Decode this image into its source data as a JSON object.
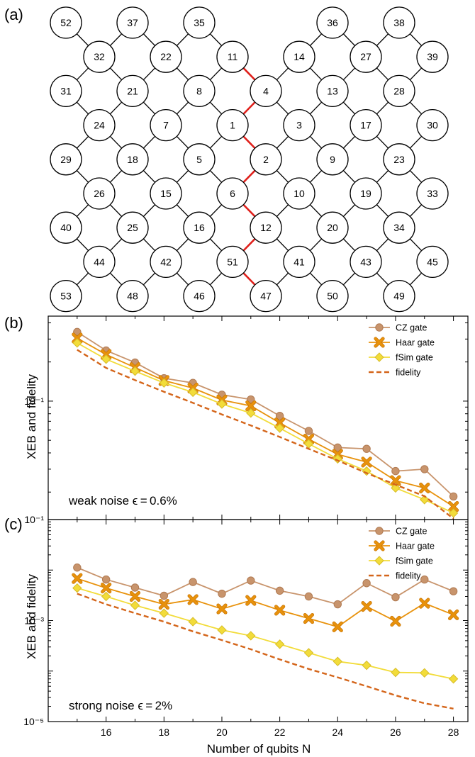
{
  "panel_labels": {
    "a": "(a)",
    "b": "(b)",
    "c": "(c)"
  },
  "lattice": {
    "nodes": [
      {
        "id": "52",
        "col": 0,
        "row": 0
      },
      {
        "id": "37",
        "col": 2,
        "row": 0
      },
      {
        "id": "35",
        "col": 4,
        "row": 0
      },
      {
        "id": "36",
        "col": 8,
        "row": 0
      },
      {
        "id": "38",
        "col": 10,
        "row": 0
      },
      {
        "id": "32",
        "col": 1,
        "row": 1
      },
      {
        "id": "22",
        "col": 3,
        "row": 1
      },
      {
        "id": "11",
        "col": 5,
        "row": 1
      },
      {
        "id": "14",
        "col": 7,
        "row": 1
      },
      {
        "id": "27",
        "col": 9,
        "row": 1
      },
      {
        "id": "39",
        "col": 11,
        "row": 1
      },
      {
        "id": "31",
        "col": 0,
        "row": 2
      },
      {
        "id": "21",
        "col": 2,
        "row": 2
      },
      {
        "id": "8",
        "col": 4,
        "row": 2
      },
      {
        "id": "4",
        "col": 6,
        "row": 2
      },
      {
        "id": "13",
        "col": 8,
        "row": 2
      },
      {
        "id": "28",
        "col": 10,
        "row": 2
      },
      {
        "id": "24",
        "col": 1,
        "row": 3
      },
      {
        "id": "7",
        "col": 3,
        "row": 3
      },
      {
        "id": "1",
        "col": 5,
        "row": 3
      },
      {
        "id": "3",
        "col": 7,
        "row": 3
      },
      {
        "id": "17",
        "col": 9,
        "row": 3
      },
      {
        "id": "30",
        "col": 11,
        "row": 3
      },
      {
        "id": "29",
        "col": 0,
        "row": 4
      },
      {
        "id": "18",
        "col": 2,
        "row": 4
      },
      {
        "id": "5",
        "col": 4,
        "row": 4
      },
      {
        "id": "2",
        "col": 6,
        "row": 4
      },
      {
        "id": "9",
        "col": 8,
        "row": 4
      },
      {
        "id": "23",
        "col": 10,
        "row": 4
      },
      {
        "id": "26",
        "col": 1,
        "row": 5
      },
      {
        "id": "15",
        "col": 3,
        "row": 5
      },
      {
        "id": "6",
        "col": 5,
        "row": 5
      },
      {
        "id": "10",
        "col": 7,
        "row": 5
      },
      {
        "id": "19",
        "col": 9,
        "row": 5
      },
      {
        "id": "33",
        "col": 11,
        "row": 5
      },
      {
        "id": "40",
        "col": 0,
        "row": 6
      },
      {
        "id": "25",
        "col": 2,
        "row": 6
      },
      {
        "id": "16",
        "col": 4,
        "row": 6
      },
      {
        "id": "12",
        "col": 6,
        "row": 6
      },
      {
        "id": "20",
        "col": 8,
        "row": 6
      },
      {
        "id": "34",
        "col": 10,
        "row": 6
      },
      {
        "id": "44",
        "col": 1,
        "row": 7
      },
      {
        "id": "42",
        "col": 3,
        "row": 7
      },
      {
        "id": "51",
        "col": 5,
        "row": 7
      },
      {
        "id": "41",
        "col": 7,
        "row": 7
      },
      {
        "id": "43",
        "col": 9,
        "row": 7
      },
      {
        "id": "45",
        "col": 11,
        "row": 7
      },
      {
        "id": "53",
        "col": 0,
        "row": 8
      },
      {
        "id": "48",
        "col": 2,
        "row": 8
      },
      {
        "id": "46",
        "col": 4,
        "row": 8
      },
      {
        "id": "47",
        "col": 6,
        "row": 8
      },
      {
        "id": "50",
        "col": 8,
        "row": 8
      },
      {
        "id": "49",
        "col": 10,
        "row": 8
      }
    ],
    "edges": [
      [
        "52",
        "32"
      ],
      [
        "37",
        "32"
      ],
      [
        "37",
        "22"
      ],
      [
        "35",
        "22"
      ],
      [
        "35",
        "11"
      ],
      [
        "36",
        "14"
      ],
      [
        "36",
        "27"
      ],
      [
        "38",
        "27"
      ],
      [
        "38",
        "39"
      ],
      [
        "32",
        "31"
      ],
      [
        "32",
        "21"
      ],
      [
        "22",
        "21"
      ],
      [
        "22",
        "8"
      ],
      [
        "11",
        "8"
      ],
      [
        "11",
        "4"
      ],
      [
        "14",
        "4"
      ],
      [
        "14",
        "13"
      ],
      [
        "27",
        "13"
      ],
      [
        "27",
        "28"
      ],
      [
        "39",
        "28"
      ],
      [
        "31",
        "24"
      ],
      [
        "21",
        "24"
      ],
      [
        "21",
        "7"
      ],
      [
        "8",
        "7"
      ],
      [
        "8",
        "1"
      ],
      [
        "4",
        "1"
      ],
      [
        "4",
        "3"
      ],
      [
        "13",
        "3"
      ],
      [
        "13",
        "17"
      ],
      [
        "28",
        "17"
      ],
      [
        "28",
        "30"
      ],
      [
        "24",
        "29"
      ],
      [
        "24",
        "18"
      ],
      [
        "7",
        "18"
      ],
      [
        "7",
        "5"
      ],
      [
        "1",
        "5"
      ],
      [
        "1",
        "2"
      ],
      [
        "3",
        "2"
      ],
      [
        "3",
        "9"
      ],
      [
        "17",
        "9"
      ],
      [
        "17",
        "23"
      ],
      [
        "30",
        "23"
      ],
      [
        "29",
        "26"
      ],
      [
        "18",
        "26"
      ],
      [
        "18",
        "15"
      ],
      [
        "5",
        "15"
      ],
      [
        "5",
        "6"
      ],
      [
        "2",
        "6"
      ],
      [
        "2",
        "10"
      ],
      [
        "9",
        "10"
      ],
      [
        "9",
        "19"
      ],
      [
        "23",
        "19"
      ],
      [
        "23",
        "33"
      ],
      [
        "26",
        "40"
      ],
      [
        "26",
        "25"
      ],
      [
        "15",
        "25"
      ],
      [
        "15",
        "16"
      ],
      [
        "6",
        "16"
      ],
      [
        "6",
        "12"
      ],
      [
        "10",
        "12"
      ],
      [
        "10",
        "20"
      ],
      [
        "19",
        "20"
      ],
      [
        "19",
        "34"
      ],
      [
        "33",
        "34"
      ],
      [
        "40",
        "44"
      ],
      [
        "25",
        "44"
      ],
      [
        "25",
        "42"
      ],
      [
        "16",
        "42"
      ],
      [
        "16",
        "51"
      ],
      [
        "12",
        "51"
      ],
      [
        "12",
        "41"
      ],
      [
        "20",
        "41"
      ],
      [
        "20",
        "43"
      ],
      [
        "34",
        "43"
      ],
      [
        "34",
        "45"
      ],
      [
        "44",
        "53"
      ],
      [
        "44",
        "48"
      ],
      [
        "42",
        "48"
      ],
      [
        "42",
        "46"
      ],
      [
        "51",
        "46"
      ],
      [
        "51",
        "47"
      ],
      [
        "41",
        "47"
      ],
      [
        "41",
        "50"
      ],
      [
        "43",
        "50"
      ],
      [
        "43",
        "49"
      ],
      [
        "45",
        "49"
      ]
    ],
    "highlight_edges": [
      [
        "11",
        "4"
      ],
      [
        "4",
        "1"
      ],
      [
        "1",
        "2"
      ],
      [
        "2",
        "6"
      ],
      [
        "6",
        "12"
      ],
      [
        "12",
        "51"
      ],
      [
        "51",
        "47"
      ]
    ],
    "colors": {
      "edge": "#000000",
      "highlight": "#e0201b"
    }
  },
  "chart_data": [
    {
      "type": "line",
      "panel": "b",
      "annotation": "weak noise ϵ = 0.6%",
      "ylabel": "XEB and fidelity",
      "yscale": "log",
      "ylim": [
        0.0123,
        0.45
      ],
      "ytick_labels": [
        {
          "value": 0.1,
          "label": "10⁻¹"
        }
      ],
      "x": [
        15,
        16,
        17,
        18,
        19,
        20,
        21,
        22,
        23,
        24,
        25,
        26,
        27,
        28
      ],
      "series": [
        {
          "name": "CZ gate",
          "marker": "circle",
          "color": "#c8946c",
          "values": [
            0.34,
            0.245,
            0.198,
            0.15,
            0.138,
            0.112,
            0.103,
            0.077,
            0.059,
            0.044,
            0.043,
            0.029,
            0.03,
            0.0185
          ]
        },
        {
          "name": "Haar gate",
          "marker": "x",
          "color": "#e8920c",
          "values": [
            0.305,
            0.228,
            0.181,
            0.144,
            0.126,
            0.102,
            0.092,
            0.068,
            0.051,
            0.039,
            0.034,
            0.0245,
            0.0215,
            0.0155
          ]
        },
        {
          "name": "fSim gate",
          "marker": "diamond",
          "color": "#f2dc3a",
          "values": [
            0.28,
            0.21,
            0.17,
            0.138,
            0.117,
            0.095,
            0.081,
            0.062,
            0.047,
            0.036,
            0.029,
            0.0215,
            0.0175,
            0.0138
          ]
        },
        {
          "name": "fidelity",
          "marker": "none",
          "dashed": true,
          "color": "#d4651a",
          "values": [
            0.248,
            0.18,
            0.145,
            0.118,
            0.097,
            0.079,
            0.065,
            0.053,
            0.043,
            0.035,
            0.028,
            0.0228,
            0.0186,
            0.0125
          ]
        }
      ]
    },
    {
      "type": "line",
      "panel": "c",
      "annotation": "strong noise ϵ = 2%",
      "ylabel": "XEB and fidelity",
      "xlabel": "Number of qubits N",
      "yscale": "log",
      "ylim": [
        1e-05,
        0.1
      ],
      "ytick_labels": [
        {
          "value": 0.1,
          "label": "10⁻¹"
        },
        {
          "value": 0.001,
          "label": "10⁻³"
        },
        {
          "value": 1e-05,
          "label": "10⁻⁵"
        }
      ],
      "x": [
        15,
        16,
        17,
        18,
        19,
        20,
        21,
        22,
        23,
        24,
        25,
        26,
        27,
        28
      ],
      "xticks": [
        16,
        18,
        20,
        22,
        24,
        26,
        28
      ],
      "series": [
        {
          "name": "CZ gate",
          "marker": "circle",
          "color": "#c8946c",
          "values": [
            0.0112,
            0.0065,
            0.0045,
            0.0031,
            0.0058,
            0.0034,
            0.0062,
            0.0039,
            0.003,
            0.0021,
            0.0055,
            0.0029,
            0.0065,
            0.0038
          ]
        },
        {
          "name": "Haar gate",
          "marker": "x",
          "color": "#e8920c",
          "values": [
            0.0068,
            0.0044,
            0.003,
            0.0021,
            0.0026,
            0.0017,
            0.0025,
            0.0016,
            0.0011,
            0.00075,
            0.0019,
            0.00097,
            0.0022,
            0.0013
          ]
        },
        {
          "name": "fSim gate",
          "marker": "diamond",
          "color": "#f2dc3a",
          "values": [
            0.0044,
            0.003,
            0.002,
            0.0014,
            0.00095,
            0.00065,
            0.0005,
            0.00034,
            0.00023,
            0.000155,
            0.00013,
            9.4e-05,
            9.2e-05,
            7e-05
          ]
        },
        {
          "name": "fidelity",
          "marker": "none",
          "dashed": true,
          "color": "#d4651a",
          "values": [
            0.0034,
            0.0021,
            0.0014,
            0.00095,
            0.00061,
            0.00041,
            0.00027,
            0.00017,
            0.00011,
            7.5e-05,
            5e-05,
            3.3e-05,
            2.3e-05,
            1.8e-05
          ]
        }
      ]
    }
  ]
}
